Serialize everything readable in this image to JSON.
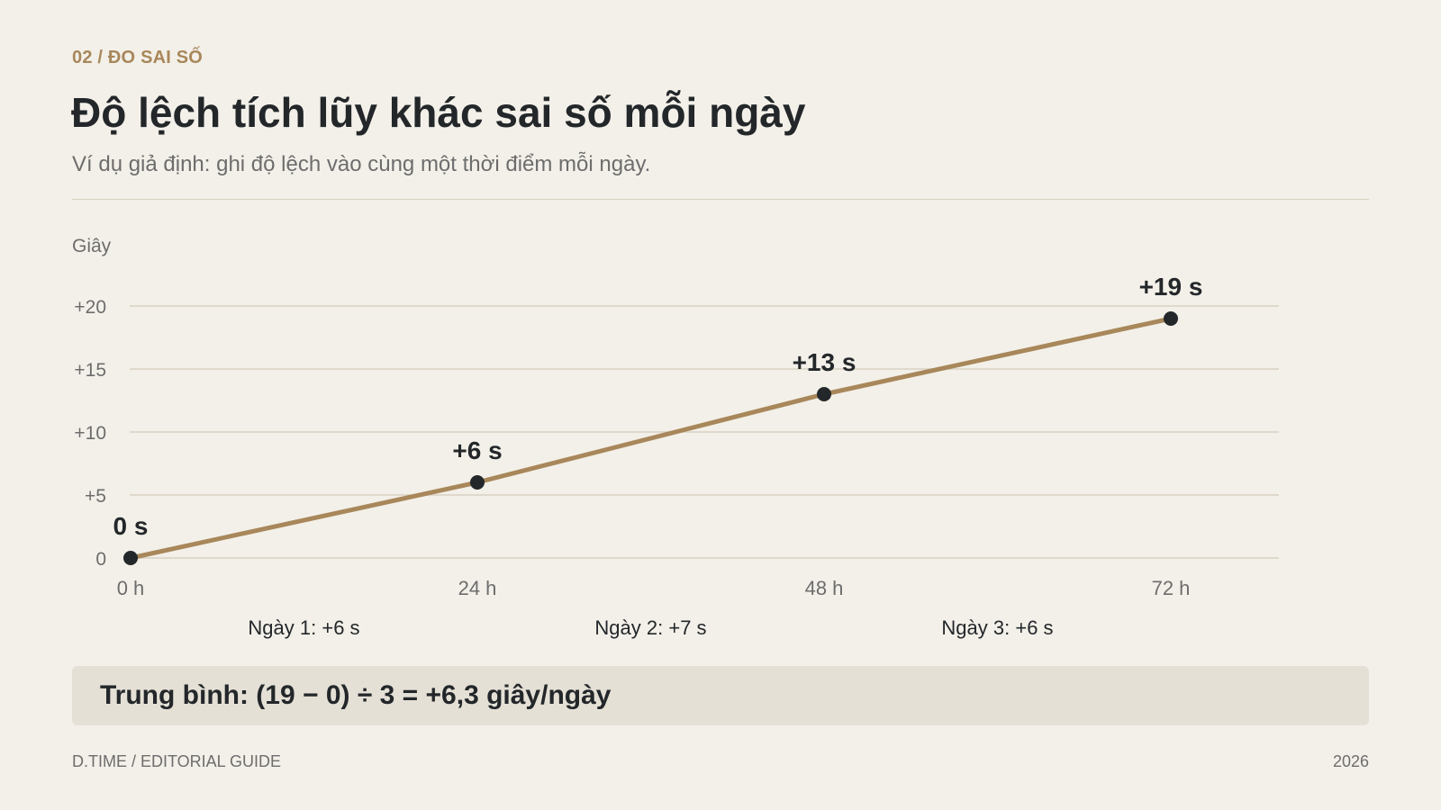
{
  "header": {
    "eyebrow": "02 / ĐO SAI SỐ",
    "title": "Độ lệch tích lũy khác sai số mỗi ngày",
    "subtitle": "Ví dụ giả định: ghi độ lệch vào cùng một thời điểm mỗi ngày."
  },
  "chart_data": {
    "type": "line",
    "ylabel": "Giây",
    "x": [
      "0 h",
      "24 h",
      "48 h",
      "72 h"
    ],
    "y_ticks": [
      "0",
      "+5",
      "+10",
      "+15",
      "+20"
    ],
    "y_tick_values": [
      0,
      5,
      10,
      15,
      20
    ],
    "ylim": [
      0,
      20
    ],
    "series": [
      {
        "values": [
          0,
          6,
          13,
          19
        ],
        "labels": [
          "0 s",
          "+6 s",
          "+13 s",
          "+19 s"
        ],
        "color": "#a8875a"
      }
    ],
    "interval_labels": [
      "Ngày 1: +6 s",
      "Ngày 2: +7 s",
      "Ngày 3: +6 s"
    ],
    "grid": true
  },
  "summary": {
    "text": "Trung bình: (19 − 0) ÷ 3 = +6,3 giây/ngày"
  },
  "footer": {
    "left": "D.TIME / EDITORIAL GUIDE",
    "right": "2026"
  },
  "colors": {
    "background": "#f3f0e9",
    "accent": "#a8875a",
    "text": "#23272a",
    "muted": "#6d6d6d",
    "grid": "#d8d1c3",
    "summary_bg": "#e5e0d6",
    "point": "#23272a"
  }
}
